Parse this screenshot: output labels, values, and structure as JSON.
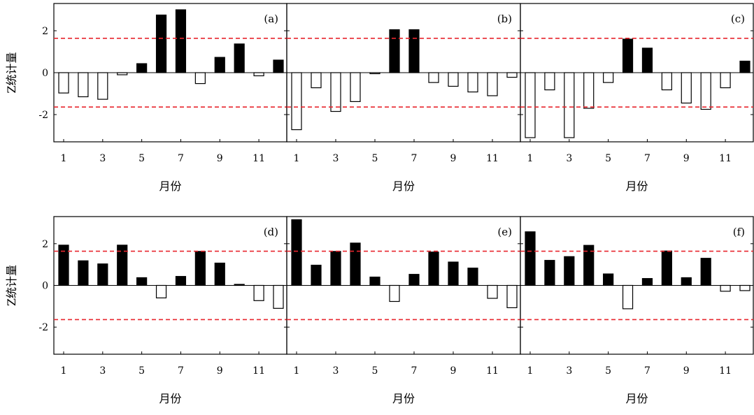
{
  "y_label": "Z统计量",
  "x_label": "月份",
  "x_ticks": [
    1,
    3,
    5,
    7,
    9,
    11
  ],
  "y_ticks": [
    -2,
    0,
    2
  ],
  "ylim": [
    -3.3,
    3.3
  ],
  "threshold": 1.64,
  "colors": {
    "positive": "#000000",
    "negative": "#ffffff",
    "threshold": "#e8262e",
    "axis": "#000000"
  },
  "chart_data": [
    {
      "type": "bar",
      "label": "(a)",
      "categories": [
        1,
        2,
        3,
        4,
        5,
        6,
        7,
        8,
        9,
        10,
        11,
        12
      ],
      "values": [
        -0.97,
        -1.15,
        -1.27,
        -0.1,
        0.43,
        2.75,
        3.0,
        -0.52,
        0.73,
        1.37,
        -0.15,
        0.6
      ],
      "reference_lines": [
        1.64,
        -1.64
      ]
    },
    {
      "type": "bar",
      "label": "(b)",
      "categories": [
        1,
        2,
        3,
        4,
        5,
        6,
        7,
        8,
        9,
        10,
        11,
        12
      ],
      "values": [
        -2.72,
        -0.72,
        -1.85,
        -1.38,
        -0.05,
        2.05,
        2.05,
        -0.47,
        -0.65,
        -0.92,
        -1.1,
        -0.22
      ],
      "reference_lines": [
        1.64,
        -1.64
      ]
    },
    {
      "type": "bar",
      "label": "(c)",
      "categories": [
        1,
        2,
        3,
        4,
        5,
        6,
        7,
        8,
        9,
        10,
        11,
        12
      ],
      "values": [
        -3.1,
        -0.82,
        -3.1,
        -1.7,
        -0.47,
        1.6,
        1.17,
        -0.82,
        -1.45,
        -1.75,
        -0.72,
        0.55
      ],
      "reference_lines": [
        1.64,
        -1.64
      ]
    },
    {
      "type": "bar",
      "label": "(d)",
      "categories": [
        1,
        2,
        3,
        4,
        5,
        6,
        7,
        8,
        9,
        10,
        11,
        12
      ],
      "values": [
        1.93,
        1.18,
        1.03,
        1.93,
        0.37,
        -0.6,
        0.43,
        1.63,
        1.07,
        0.05,
        -0.73,
        -1.1
      ],
      "reference_lines": [
        1.64,
        -1.64
      ]
    },
    {
      "type": "bar",
      "label": "(e)",
      "categories": [
        1,
        2,
        3,
        4,
        5,
        6,
        7,
        8,
        9,
        10,
        11,
        12
      ],
      "values": [
        3.15,
        0.97,
        1.63,
        2.03,
        0.4,
        -0.77,
        0.53,
        1.6,
        1.12,
        0.83,
        -0.62,
        -1.07
      ],
      "reference_lines": [
        1.64,
        -1.64
      ]
    },
    {
      "type": "bar",
      "label": "(f)",
      "categories": [
        1,
        2,
        3,
        4,
        5,
        6,
        7,
        8,
        9,
        10,
        11,
        12
      ],
      "values": [
        2.57,
        1.2,
        1.38,
        1.92,
        0.55,
        -1.12,
        0.33,
        1.65,
        0.37,
        1.3,
        -0.28,
        -0.25
      ],
      "reference_lines": [
        1.64,
        -1.64
      ]
    }
  ]
}
